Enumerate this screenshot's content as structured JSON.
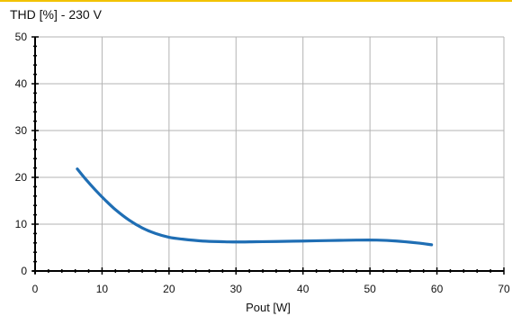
{
  "chart_data": {
    "type": "line",
    "title": "THD [%] - 230 V",
    "xlabel": "Pout [W]",
    "ylabel": "",
    "xlim": [
      0,
      70
    ],
    "ylim": [
      0,
      50
    ],
    "x_ticks": [
      0,
      10,
      20,
      30,
      40,
      50,
      60,
      70
    ],
    "y_ticks": [
      0,
      10,
      20,
      30,
      40,
      50
    ],
    "grid": true,
    "colors": {
      "line": "#1f6eb4",
      "grid": "#b3b3b3",
      "axis": "#000000",
      "accent_bar": "#f2c200"
    },
    "series": [
      {
        "x": [
          6.3,
          7.5,
          9,
          10.5,
          12,
          14,
          16,
          18,
          20,
          22,
          25,
          28,
          30,
          33,
          36,
          40,
          44,
          48,
          51,
          54,
          57,
          59.2
        ],
        "values": [
          21.8,
          19.7,
          17.3,
          15.1,
          13.1,
          10.9,
          9.2,
          8.0,
          7.2,
          6.8,
          6.4,
          6.25,
          6.2,
          6.25,
          6.3,
          6.4,
          6.5,
          6.6,
          6.6,
          6.4,
          6.0,
          5.6
        ]
      }
    ]
  }
}
